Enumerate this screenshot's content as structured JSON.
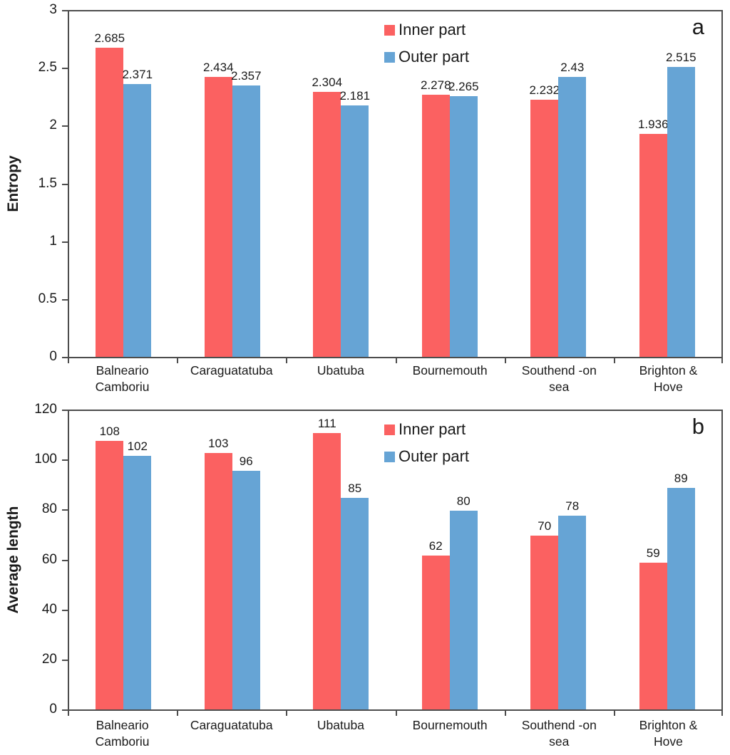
{
  "chart_data": [
    {
      "type": "bar",
      "panel_label": "a",
      "ylabel": "Entropy",
      "ylim": [
        0,
        3
      ],
      "yticks": [
        "3",
        "2.5",
        "2",
        "1.5",
        "1",
        "0.5",
        "0"
      ],
      "categories": [
        "Balneario\nCamboriu",
        "Caraguatatuba",
        "Ubatuba",
        "Bournemouth",
        "Southend -on\nsea",
        "Brighton &\nHove"
      ],
      "series": [
        {
          "name": "Inner part",
          "color": "#FB6161",
          "values": [
            2.685,
            2.434,
            2.304,
            2.278,
            2.232,
            1.936
          ],
          "labels": [
            "2.685",
            "2.434",
            "2.304",
            "2.278",
            "2.232",
            "1.936"
          ]
        },
        {
          "name": "Outer part",
          "color": "#66A4D5",
          "values": [
            2.371,
            2.357,
            2.181,
            2.265,
            2.43,
            2.515
          ],
          "labels": [
            "2.371",
            "2.357",
            "2.181",
            "2.265",
            "2.43",
            "2.515"
          ]
        }
      ],
      "legend_position": "top-center",
      "grid": false
    },
    {
      "type": "bar",
      "panel_label": "b",
      "ylabel": "Average length",
      "ylim": [
        0,
        120
      ],
      "yticks": [
        "120",
        "100",
        "80",
        "60",
        "40",
        "20",
        "0"
      ],
      "categories": [
        "Balneario\nCamboriu",
        "Caraguatatuba",
        "Ubatuba",
        "Bournemouth",
        "Southend -on\nsea",
        "Brighton &\nHove"
      ],
      "series": [
        {
          "name": "Inner part",
          "color": "#FB6161",
          "values": [
            108,
            103,
            111,
            62,
            70,
            59
          ],
          "labels": [
            "108",
            "103",
            "111",
            "62",
            "70",
            "59"
          ]
        },
        {
          "name": "Outer part",
          "color": "#66A4D5",
          "values": [
            102,
            96,
            85,
            80,
            78,
            89
          ],
          "labels": [
            "102",
            "96",
            "85",
            "80",
            "78",
            "89"
          ]
        }
      ],
      "legend_position": "top-center",
      "grid": false
    }
  ]
}
